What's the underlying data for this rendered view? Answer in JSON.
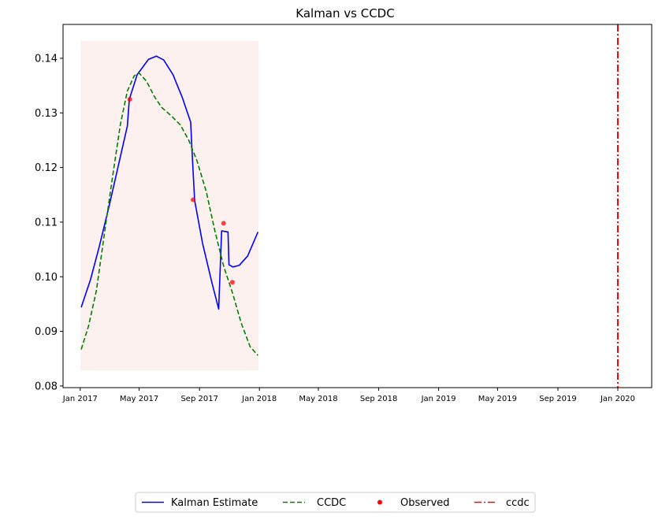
{
  "chart_data": {
    "type": "line",
    "title": "Kalman vs CCDC",
    "xlabel": "",
    "ylabel": "",
    "x_axis": {
      "type": "date",
      "range": [
        "2016-11-27",
        "2020-03-10"
      ],
      "ticks": [
        "2017-01-01",
        "2017-05-01",
        "2017-09-01",
        "2018-01-01",
        "2018-05-01",
        "2018-09-01",
        "2019-01-01",
        "2019-05-01",
        "2019-09-01",
        "2020-01-01"
      ],
      "tick_labels": [
        "Jan 2017",
        "May 2017",
        "Sep 2017",
        "Jan 2018",
        "May 2018",
        "Sep 2018",
        "Jan 2019",
        "May 2019",
        "Sep 2019",
        "Jan 2020"
      ]
    },
    "y_axis": {
      "range": [
        0.0797,
        0.1462
      ],
      "ticks": [
        0.08,
        0.09,
        0.1,
        0.11,
        0.12,
        0.13,
        0.14
      ],
      "tick_labels": [
        "0.08",
        "0.09",
        "0.10",
        "0.11",
        "0.12",
        "0.13",
        "0.14"
      ]
    },
    "grid": false,
    "legend_placement": "bottom-center",
    "shaded_region": {
      "x": [
        "2017-01-03",
        "2017-12-29"
      ],
      "y": [
        0.0829,
        0.1431
      ],
      "color": "#f4c9bf"
    },
    "series": [
      {
        "name": "Kalman Estimate",
        "style": "solid",
        "color": "#0000ff",
        "points": [
          [
            "2017-01-03",
            0.0944
          ],
          [
            "2017-01-22",
            0.0995
          ],
          [
            "2017-02-09",
            0.1056
          ],
          [
            "2017-03-01",
            0.113
          ],
          [
            "2017-03-20",
            0.1205
          ],
          [
            "2017-04-07",
            0.1276
          ],
          [
            "2017-04-11",
            0.1325
          ],
          [
            "2017-04-27",
            0.137
          ],
          [
            "2017-05-20",
            0.1398
          ],
          [
            "2017-06-05",
            0.1404
          ],
          [
            "2017-06-20",
            0.1397
          ],
          [
            "2017-07-09",
            0.137
          ],
          [
            "2017-07-28",
            0.1328
          ],
          [
            "2017-08-14",
            0.1283
          ],
          [
            "2017-08-16",
            0.1243
          ],
          [
            "2017-08-22",
            0.114
          ],
          [
            "2017-09-07",
            0.1062
          ],
          [
            "2017-09-26",
            0.099
          ],
          [
            "2017-10-10",
            0.0941
          ],
          [
            "2017-10-16",
            0.1084
          ],
          [
            "2017-10-29",
            0.1082
          ],
          [
            "2017-10-31",
            0.1022
          ],
          [
            "2017-11-08",
            0.1018
          ],
          [
            "2017-11-21",
            0.1021
          ],
          [
            "2017-12-08",
            0.1038
          ],
          [
            "2017-12-29",
            0.1082
          ]
        ]
      },
      {
        "name": "CCDC",
        "style": "dashed",
        "color": "#008000",
        "points": [
          [
            "2017-01-03",
            0.0867
          ],
          [
            "2017-01-18",
            0.091
          ],
          [
            "2017-02-03",
            0.0975
          ],
          [
            "2017-02-21",
            0.109
          ],
          [
            "2017-03-09",
            0.119
          ],
          [
            "2017-03-24",
            0.128
          ],
          [
            "2017-04-07",
            0.134
          ],
          [
            "2017-04-21",
            0.1368
          ],
          [
            "2017-05-01",
            0.1373
          ],
          [
            "2017-05-16",
            0.1358
          ],
          [
            "2017-06-01",
            0.133
          ],
          [
            "2017-06-16",
            0.131
          ],
          [
            "2017-07-05",
            0.1295
          ],
          [
            "2017-07-24",
            0.1278
          ],
          [
            "2017-08-10",
            0.125
          ],
          [
            "2017-08-27",
            0.1212
          ],
          [
            "2017-09-15",
            0.1155
          ],
          [
            "2017-10-02",
            0.1085
          ],
          [
            "2017-10-20",
            0.102
          ],
          [
            "2017-11-08",
            0.0968
          ],
          [
            "2017-11-25",
            0.0915
          ],
          [
            "2017-12-13",
            0.0872
          ],
          [
            "2017-12-29",
            0.0856
          ]
        ]
      },
      {
        "name": "Observed",
        "style": "points",
        "color": "#ff0000",
        "points": [
          [
            "2017-04-12",
            0.1325
          ],
          [
            "2017-08-19",
            0.1141
          ],
          [
            "2017-10-20",
            0.1098
          ],
          [
            "2017-11-07",
            0.099
          ]
        ]
      },
      {
        "name": "ccdc",
        "style": "dashdot-vertical",
        "color": "#ff0000",
        "x": "2020-01-01"
      }
    ]
  }
}
